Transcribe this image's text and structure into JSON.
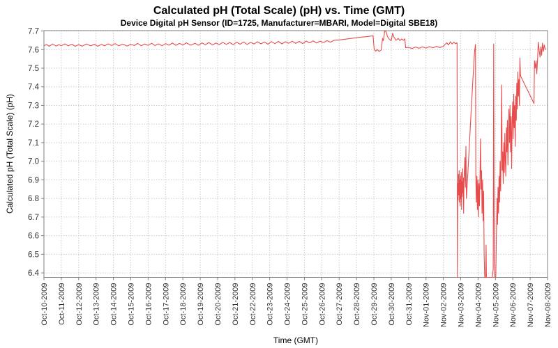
{
  "chart_data": {
    "type": "line",
    "title": "Calculated pH (Total Scale) (pH) vs. Time (GMT)",
    "subtitle": "Device Digital pH Sensor (ID=1725, Manufacturer=MBARI, Model=Digital SBE18)",
    "xlabel": "Time (GMT)",
    "ylabel": "Calculated pH (Total Scale) (pH)",
    "legend": "none",
    "grid": "dashed, both axes",
    "ylim": [
      6.376,
      7.702
    ],
    "y_ticks": [
      6.4,
      6.5,
      6.6,
      6.7,
      6.8,
      6.9,
      7.0,
      7.1,
      7.2,
      7.3,
      7.4,
      7.5,
      7.6,
      7.7
    ],
    "x_tick_labels": [
      "Oct-10-2009",
      "Oct-11-2009",
      "Oct-12-2009",
      "Oct-13-2009",
      "Oct-14-2009",
      "Oct-15-2009",
      "Oct-16-2009",
      "Oct-17-2009",
      "Oct-18-2009",
      "Oct-19-2009",
      "Oct-20-2009",
      "Oct-21-2009",
      "Oct-22-2009",
      "Oct-23-2009",
      "Oct-24-2009",
      "Oct-25-2009",
      "Oct-26-2009",
      "Oct-27-2009",
      "Oct-28-2009",
      "Oct-29-2009",
      "Oct-30-2009",
      "Oct-31-2009",
      "Nov-01-2009",
      "Nov-02-2009",
      "Nov-03-2009",
      "Nov-04-2009",
      "Nov-05-2009",
      "Nov-06-2009",
      "Nov-07-2009",
      "Nov-08-2009"
    ],
    "colors": {
      "line": "#e84b4b",
      "grid": "#cccccc",
      "border": "#808080",
      "tick_text": "#333333"
    },
    "series": [
      {
        "name": "Calculated pH (Total Scale)",
        "x_unit": "days since Oct-10-2009 00:00 GMT",
        "points": [
          [
            0.0,
            7.62
          ],
          [
            0.15,
            7.628
          ],
          [
            0.3,
            7.618
          ],
          [
            0.5,
            7.63
          ],
          [
            0.7,
            7.619
          ],
          [
            0.85,
            7.627
          ],
          [
            1.0,
            7.621
          ],
          [
            1.2,
            7.631
          ],
          [
            1.4,
            7.62
          ],
          [
            1.6,
            7.629
          ],
          [
            1.8,
            7.618
          ],
          [
            2.0,
            7.627
          ],
          [
            2.2,
            7.619
          ],
          [
            2.45,
            7.63
          ],
          [
            2.7,
            7.62
          ],
          [
            2.9,
            7.629
          ],
          [
            3.1,
            7.618
          ],
          [
            3.3,
            7.628
          ],
          [
            3.5,
            7.621
          ],
          [
            3.7,
            7.631
          ],
          [
            3.9,
            7.622
          ],
          [
            4.1,
            7.632
          ],
          [
            4.3,
            7.621
          ],
          [
            4.55,
            7.629
          ],
          [
            4.8,
            7.619
          ],
          [
            5.0,
            7.629
          ],
          [
            5.2,
            7.622
          ],
          [
            5.4,
            7.633
          ],
          [
            5.6,
            7.621
          ],
          [
            5.8,
            7.63
          ],
          [
            6.0,
            7.623
          ],
          [
            6.2,
            7.634
          ],
          [
            6.4,
            7.622
          ],
          [
            6.6,
            7.631
          ],
          [
            6.8,
            7.621
          ],
          [
            7.0,
            7.632
          ],
          [
            7.2,
            7.624
          ],
          [
            7.4,
            7.635
          ],
          [
            7.6,
            7.623
          ],
          [
            7.8,
            7.633
          ],
          [
            8.0,
            7.625
          ],
          [
            8.2,
            7.636
          ],
          [
            8.45,
            7.624
          ],
          [
            8.7,
            7.634
          ],
          [
            8.9,
            7.623
          ],
          [
            9.1,
            7.636
          ],
          [
            9.3,
            7.626
          ],
          [
            9.5,
            7.638
          ],
          [
            9.7,
            7.625
          ],
          [
            9.9,
            7.635
          ],
          [
            10.1,
            7.627
          ],
          [
            10.3,
            7.639
          ],
          [
            10.5,
            7.628
          ],
          [
            10.7,
            7.638
          ],
          [
            10.9,
            7.626
          ],
          [
            11.1,
            7.64
          ],
          [
            11.3,
            7.629
          ],
          [
            11.5,
            7.641
          ],
          [
            11.7,
            7.628
          ],
          [
            11.9,
            7.639
          ],
          [
            12.1,
            7.63
          ],
          [
            12.3,
            7.642
          ],
          [
            12.5,
            7.631
          ],
          [
            12.7,
            7.641
          ],
          [
            12.9,
            7.629
          ],
          [
            13.1,
            7.643
          ],
          [
            13.3,
            7.632
          ],
          [
            13.5,
            7.644
          ],
          [
            13.7,
            7.631
          ],
          [
            13.9,
            7.642
          ],
          [
            14.1,
            7.634
          ],
          [
            14.3,
            7.645
          ],
          [
            14.5,
            7.633
          ],
          [
            14.7,
            7.644
          ],
          [
            14.9,
            7.632
          ],
          [
            15.1,
            7.646
          ],
          [
            15.3,
            7.636
          ],
          [
            15.5,
            7.647
          ],
          [
            15.7,
            7.635
          ],
          [
            15.9,
            7.645
          ],
          [
            16.1,
            7.638
          ],
          [
            16.3,
            7.648
          ],
          [
            16.5,
            7.64
          ],
          [
            16.7,
            7.65
          ],
          [
            17.0,
            7.652
          ],
          [
            17.5,
            7.658
          ],
          [
            18.0,
            7.664
          ],
          [
            18.5,
            7.669
          ],
          [
            18.95,
            7.674
          ],
          [
            19.02,
            7.602
          ],
          [
            19.1,
            7.592
          ],
          [
            19.2,
            7.6
          ],
          [
            19.3,
            7.59
          ],
          [
            19.42,
            7.598
          ],
          [
            19.5,
            7.66
          ],
          [
            19.55,
            7.648
          ],
          [
            19.62,
            7.7
          ],
          [
            19.7,
            7.697
          ],
          [
            19.78,
            7.67
          ],
          [
            19.9,
            7.655
          ],
          [
            20.0,
            7.648
          ],
          [
            20.08,
            7.688
          ],
          [
            20.16,
            7.667
          ],
          [
            20.28,
            7.65
          ],
          [
            20.4,
            7.66
          ],
          [
            20.5,
            7.648
          ],
          [
            20.6,
            7.657
          ],
          [
            20.7,
            7.65
          ],
          [
            20.78,
            7.658
          ],
          [
            20.83,
            7.61
          ],
          [
            21.0,
            7.612
          ],
          [
            21.2,
            7.606
          ],
          [
            21.4,
            7.614
          ],
          [
            21.6,
            7.607
          ],
          [
            21.8,
            7.615
          ],
          [
            22.0,
            7.608
          ],
          [
            22.2,
            7.616
          ],
          [
            22.4,
            7.61
          ],
          [
            22.6,
            7.617
          ],
          [
            22.8,
            7.611
          ],
          [
            23.0,
            7.618
          ],
          [
            23.1,
            7.628
          ],
          [
            23.2,
            7.636
          ],
          [
            23.3,
            7.625
          ],
          [
            23.4,
            7.642
          ],
          [
            23.5,
            7.63
          ],
          [
            23.6,
            7.64
          ],
          [
            23.7,
            7.632
          ],
          [
            23.79,
            7.636
          ],
          [
            23.81,
            6.37
          ],
          [
            23.83,
            6.88
          ],
          [
            23.85,
            6.79
          ],
          [
            23.87,
            6.93
          ],
          [
            23.89,
            6.82
          ],
          [
            23.91,
            6.95
          ],
          [
            23.93,
            6.78
          ],
          [
            23.95,
            6.9
          ],
          [
            23.97,
            6.76
          ],
          [
            23.99,
            6.92
          ],
          [
            24.01,
            6.8
          ],
          [
            24.03,
            6.94
          ],
          [
            24.05,
            6.74
          ],
          [
            24.07,
            6.89
          ],
          [
            24.09,
            6.81
          ],
          [
            24.11,
            6.96
          ],
          [
            24.13,
            6.83
          ],
          [
            24.15,
            6.91
          ],
          [
            24.17,
            6.72
          ],
          [
            24.19,
            6.88
          ],
          [
            24.21,
            6.94
          ],
          [
            24.24,
            7.02
          ],
          [
            24.27,
            6.86
          ],
          [
            24.3,
            7.08
          ],
          [
            24.33,
            6.8
          ],
          [
            24.42,
            6.95
          ],
          [
            24.55,
            7.18
          ],
          [
            24.68,
            7.4
          ],
          [
            24.8,
            7.59
          ],
          [
            24.85,
            7.628
          ],
          [
            24.87,
            6.92
          ],
          [
            24.9,
            6.78
          ],
          [
            24.93,
            6.92
          ],
          [
            24.96,
            6.74
          ],
          [
            24.99,
            6.9
          ],
          [
            25.02,
            6.7
          ],
          [
            25.05,
            6.88
          ],
          [
            25.08,
            6.76
          ],
          [
            25.11,
            6.93
          ],
          [
            25.14,
            7.12
          ],
          [
            25.17,
            6.85
          ],
          [
            25.2,
            6.95
          ],
          [
            25.23,
            6.72
          ],
          [
            25.26,
            6.9
          ],
          [
            25.29,
            6.68
          ],
          [
            25.32,
            6.84
          ],
          [
            25.35,
            6.5
          ],
          [
            25.38,
            6.37
          ],
          [
            25.44,
            6.37
          ],
          [
            25.46,
            6.55
          ],
          [
            25.48,
            6.37
          ],
          [
            25.65,
            6.365
          ],
          [
            25.82,
            6.365
          ],
          [
            25.87,
            6.42
          ],
          [
            25.9,
            7.63
          ],
          [
            25.93,
            6.45
          ],
          [
            25.97,
            6.37
          ],
          [
            26.02,
            6.365
          ],
          [
            26.06,
            6.62
          ],
          [
            26.09,
            6.8
          ],
          [
            26.12,
            6.66
          ],
          [
            26.15,
            6.86
          ],
          [
            26.18,
            6.72
          ],
          [
            26.21,
            6.92
          ],
          [
            26.24,
            6.78
          ],
          [
            26.27,
            7.0
          ],
          [
            26.3,
            6.84
          ],
          [
            26.33,
            7.08
          ],
          [
            26.36,
            7.41
          ],
          [
            26.39,
            6.95
          ],
          [
            26.42,
            7.05
          ],
          [
            26.45,
            6.88
          ],
          [
            26.48,
            7.1
          ],
          [
            26.51,
            6.94
          ],
          [
            26.54,
            7.15
          ],
          [
            26.57,
            7.0
          ],
          [
            26.6,
            6.92
          ],
          [
            26.63,
            7.18
          ],
          [
            26.66,
            7.05
          ],
          [
            26.69,
            7.22
          ],
          [
            26.72,
            6.98
          ],
          [
            26.75,
            7.15
          ],
          [
            26.78,
            7.28
          ],
          [
            26.81,
            7.1
          ],
          [
            26.84,
            7.3
          ],
          [
            26.87,
            7.05
          ],
          [
            26.9,
            7.24
          ],
          [
            26.93,
            6.96
          ],
          [
            26.96,
            7.2
          ],
          [
            26.99,
            7.32
          ],
          [
            27.02,
            7.12
          ],
          [
            27.05,
            7.36
          ],
          [
            27.08,
            7.18
          ],
          [
            27.11,
            7.3
          ],
          [
            27.14,
            7.08
          ],
          [
            27.17,
            7.35
          ],
          [
            27.2,
            7.22
          ],
          [
            27.23,
            7.42
          ],
          [
            27.26,
            7.28
          ],
          [
            27.29,
            7.48
          ],
          [
            27.32,
            7.35
          ],
          [
            27.35,
            7.44
          ],
          [
            27.38,
            7.3
          ],
          [
            27.41,
            7.555
          ],
          [
            27.44,
            7.46
          ],
          [
            28.22,
            7.31
          ],
          [
            28.25,
            7.54
          ],
          [
            28.29,
            7.5
          ],
          [
            28.34,
            7.54
          ],
          [
            28.38,
            7.47
          ],
          [
            28.43,
            7.555
          ],
          [
            28.47,
            7.64
          ],
          [
            28.52,
            7.595
          ],
          [
            28.57,
            7.56
          ],
          [
            28.62,
            7.615
          ],
          [
            28.66,
            7.57
          ],
          [
            28.71,
            7.635
          ],
          [
            28.76,
            7.59
          ],
          [
            28.81,
            7.625
          ],
          [
            28.86,
            7.605
          ],
          [
            28.91,
            7.6
          ]
        ]
      }
    ]
  }
}
